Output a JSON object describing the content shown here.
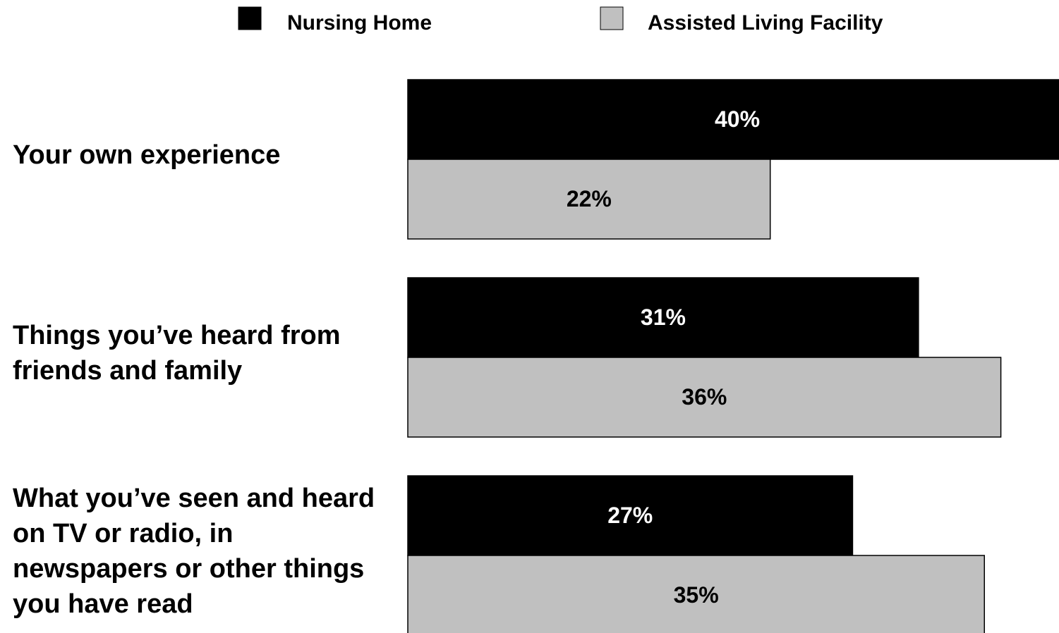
{
  "chart_data": {
    "type": "bar",
    "orientation": "horizontal",
    "categories": [
      "Your own experience",
      "Things you’ve heard from friends and family",
      "What you’ve seen and heard on TV or radio, in newspapers or other things you have read"
    ],
    "series": [
      {
        "name": "Nursing Home",
        "color": "#000000",
        "values": [
          40,
          31,
          27
        ],
        "value_labels": [
          "40%",
          "31%",
          "27%"
        ]
      },
      {
        "name": "Assisted Living Facility",
        "color": "#c0c0c0",
        "values": [
          22,
          36,
          35
        ],
        "value_labels": [
          "22%",
          "36%",
          "35%"
        ]
      }
    ]
  }
}
